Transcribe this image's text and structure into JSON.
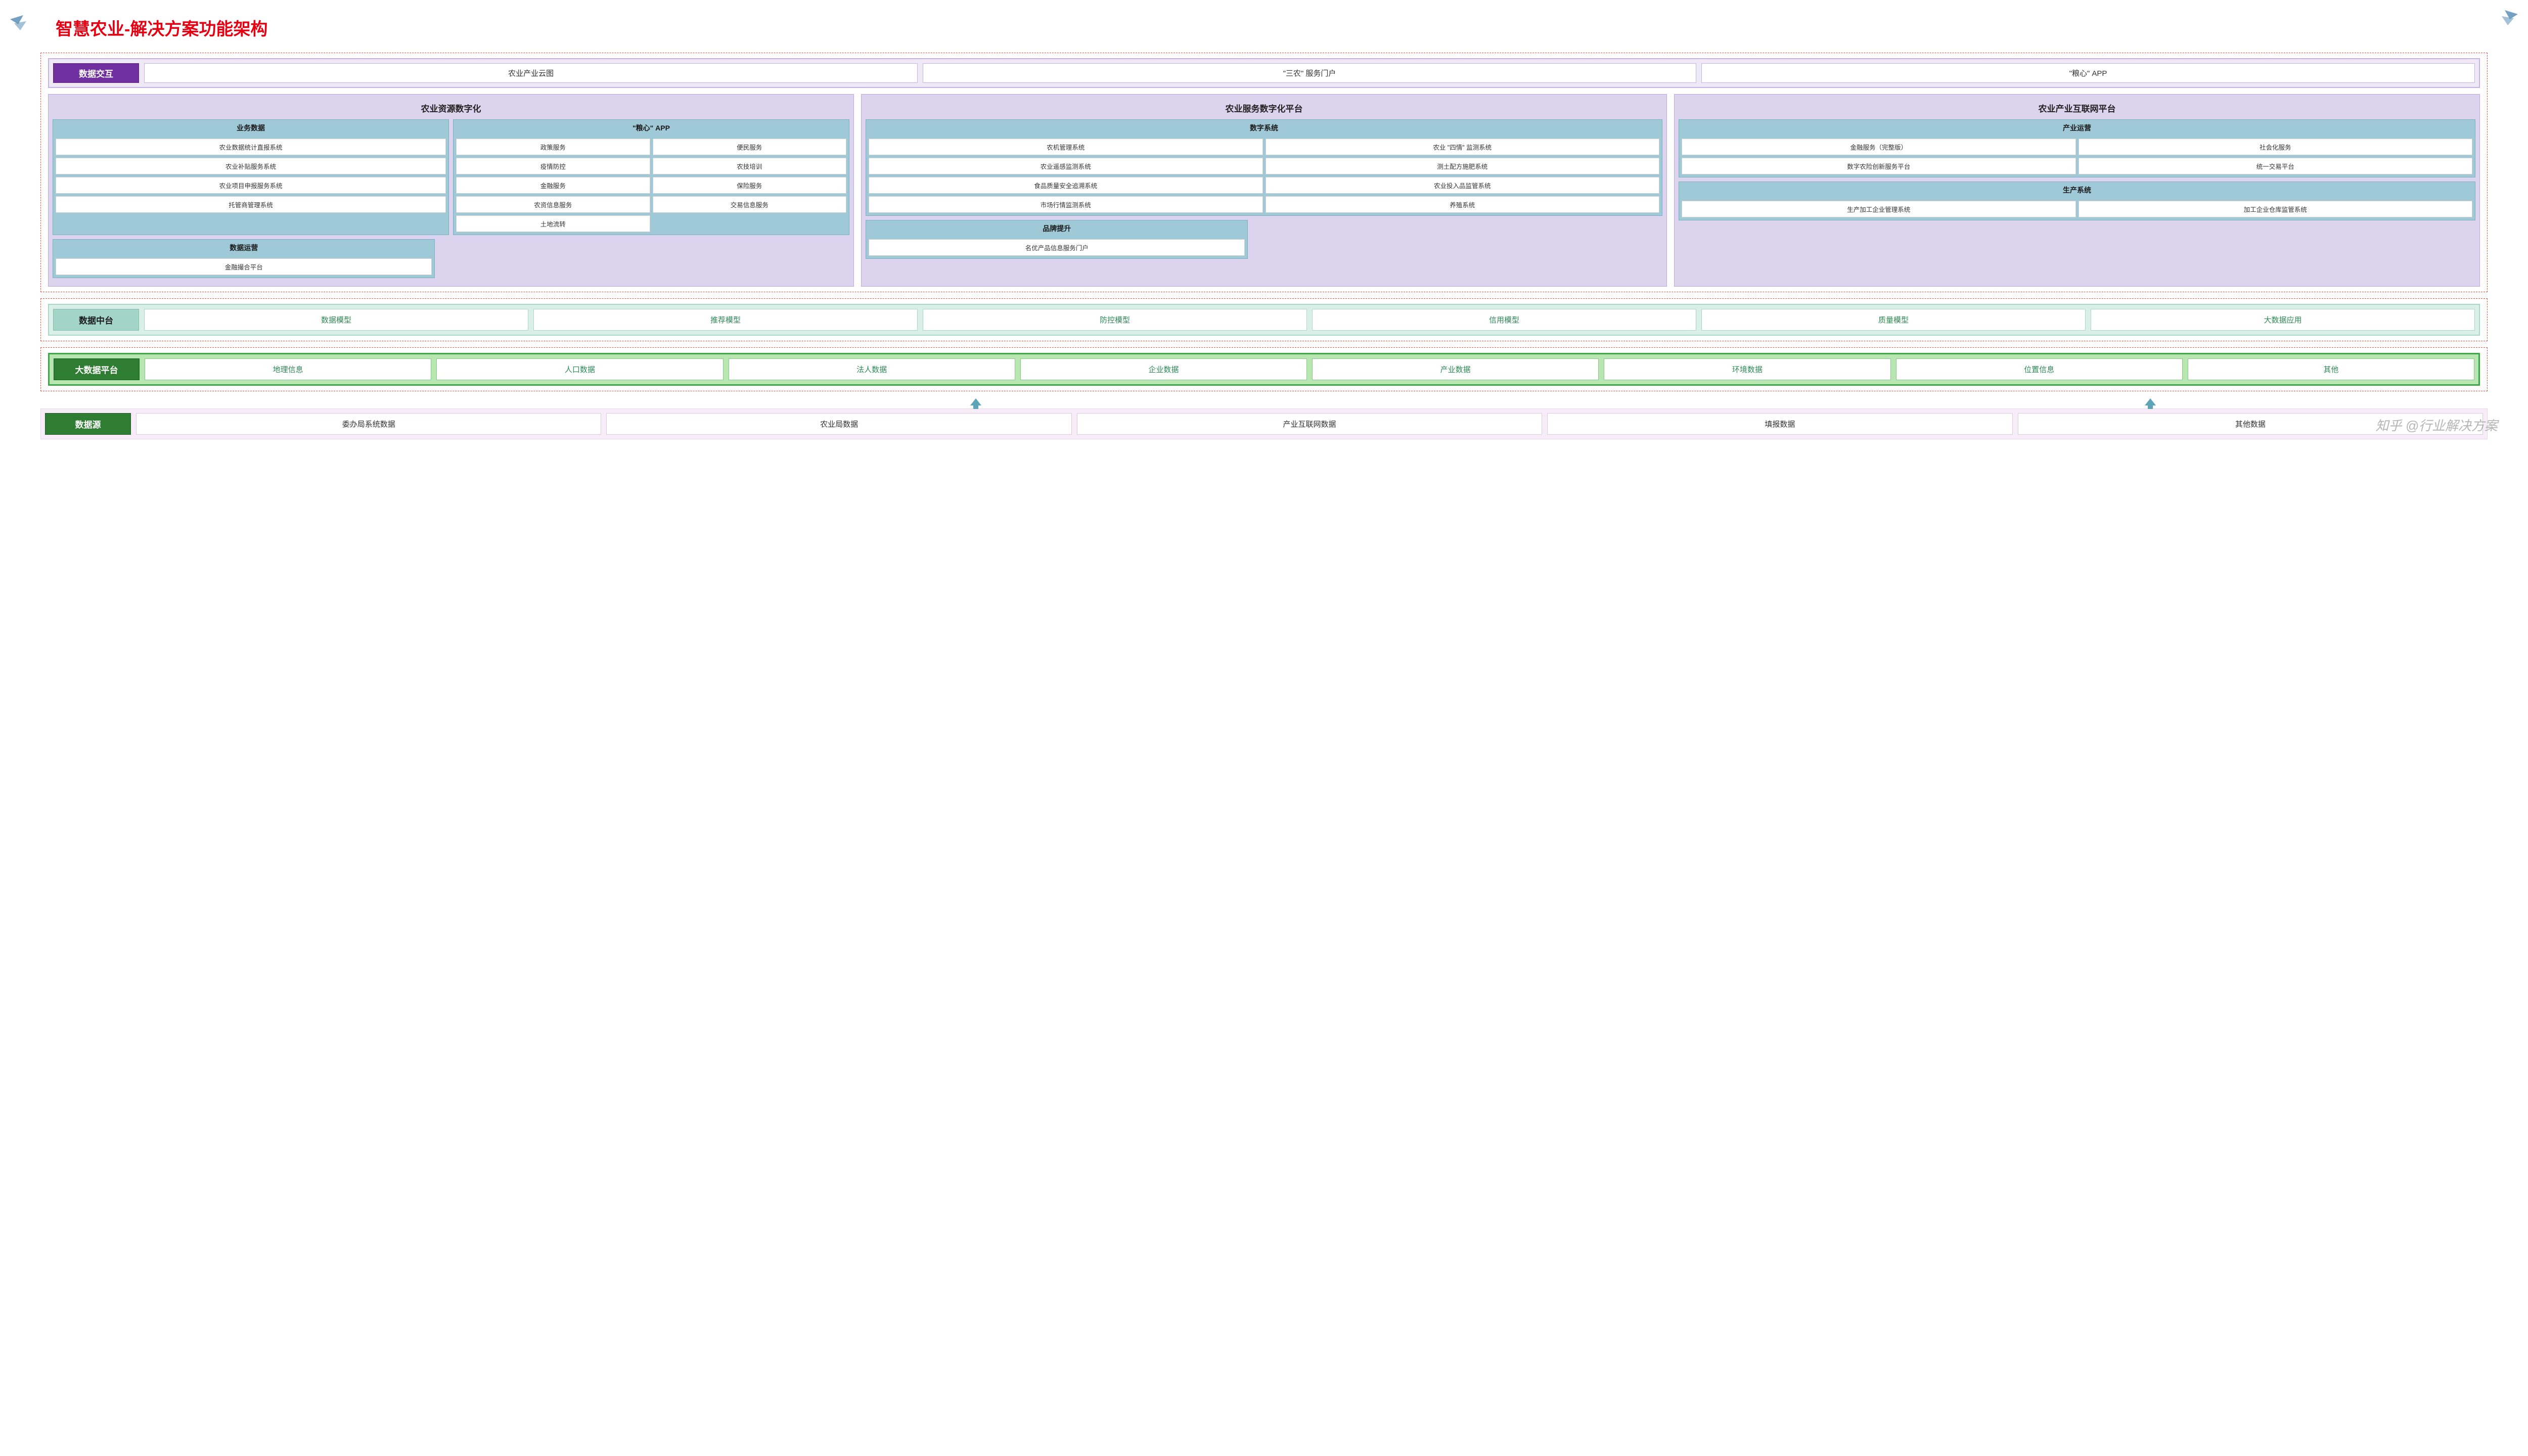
{
  "title": {
    "text": "智慧农业-解决方案功能架构",
    "color": "#e60012"
  },
  "corner_icon_color": "#5a8fb8",
  "row1": {
    "label": "数据交互",
    "label_bg": "#7030a0",
    "wrap_bg": "#efe9f7",
    "wrap_border": "#c5b4e3",
    "items": [
      "农业产业云图",
      "\"三农\" 服务门户",
      "\"粮心\" APP"
    ]
  },
  "row2": {
    "panel_bg": "#dcd4ee",
    "panel_border": "#b9abe0",
    "sub_bg": "#9fc9d6",
    "columns": [
      {
        "title": "农业资源数字化",
        "rows": [
          {
            "panes": [
              {
                "label": "业务数据",
                "cols": 1,
                "items": [
                  "农业数据统计直报系统",
                  "农业补贴服务系统",
                  "农业项目申报服务系统",
                  "托管商管理系统"
                ]
              },
              {
                "label": "\"粮心\" APP",
                "cols": 2,
                "items": [
                  "政策服务",
                  "便民服务",
                  "疫情防控",
                  "农技培训",
                  "金融服务",
                  "保险服务",
                  "农资信息服务",
                  "交易信息服务",
                  "土地流转"
                ]
              }
            ]
          },
          {
            "panes": [
              {
                "label": "数据运营",
                "cols": 1,
                "items": [
                  "金融撮合平台"
                ],
                "half": true
              }
            ]
          }
        ]
      },
      {
        "title": "农业服务数字化平台",
        "rows": [
          {
            "panes": [
              {
                "label": "数字系统",
                "cols": 2,
                "items": [
                  "农机管理系统",
                  "农业 \"四情\" 监测系统",
                  "农业遥感监测系统",
                  "测土配方施肥系统",
                  "食品质量安全追溯系统",
                  "农业投入品监管系统",
                  "市场行情监测系统",
                  "养殖系统"
                ]
              }
            ]
          },
          {
            "panes": [
              {
                "label": "品牌提升",
                "cols": 1,
                "items": [
                  "名优产品信息服务门户"
                ],
                "half": true
              }
            ]
          }
        ]
      },
      {
        "title": "农业产业互联网平台",
        "rows": [
          {
            "panes": [
              {
                "label": "产业运营",
                "cols": 2,
                "items": [
                  "金融服务（完整版）",
                  "社会化服务",
                  "数字农险创新服务平台",
                  "统一交易平台"
                ]
              }
            ]
          },
          {
            "panes": [
              {
                "label": "生产系统",
                "cols": 2,
                "items": [
                  "生产加工企业管理系统",
                  "加工企业仓库监管系统"
                ]
              }
            ]
          }
        ]
      }
    ]
  },
  "row3": {
    "label": "数据中台",
    "label_bg": "#a3d5c6",
    "wrap_bg": "#d9efe7",
    "wrap_border": "#a8d8c8",
    "item_text_color": "#2e8b57",
    "items": [
      "数据模型",
      "推荐模型",
      "防控模型",
      "信用模型",
      "质量模型",
      "大数据应用"
    ]
  },
  "row4": {
    "label": "大数据平台",
    "label_bg": "#2e7d32",
    "wrap_bg": "#b8e6b0",
    "wrap_border": "#3fa64a",
    "item_text_color": "#2e8b57",
    "items": [
      "地理信息",
      "人口数据",
      "法人数据",
      "企业数据",
      "产业数据",
      "环境数据",
      "位置信息",
      "其他"
    ]
  },
  "arrows": {
    "color": "#5da4b8",
    "positions_pct": [
      38,
      86
    ]
  },
  "row5": {
    "label": "数据源",
    "label_bg": "#2e7d32",
    "wrap_bg": "#f7ecf8",
    "wrap_border": "#e6d6ec",
    "items": [
      "委办局系统数据",
      "农业局数据",
      "产业互联网数据",
      "填报数据",
      "其他数据"
    ]
  },
  "watermark": "知乎 @行业解决方案"
}
